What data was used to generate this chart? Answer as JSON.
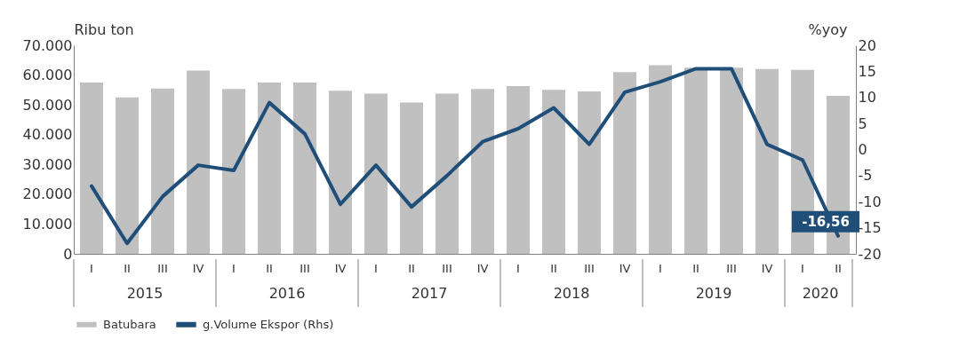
{
  "chart_data": {
    "type": "bar",
    "categories": [
      "I",
      "II",
      "III",
      "IV",
      "I",
      "II",
      "III",
      "IV",
      "I",
      "II",
      "III",
      "IV",
      "I",
      "II",
      "III",
      "IV",
      "I",
      "II",
      "III",
      "IV",
      "I",
      "II"
    ],
    "annotations": [
      "2015",
      "2016",
      "2017",
      "2018",
      "2019",
      "2020"
    ],
    "series": [
      {
        "name": "Batubara",
        "color": "#c0c0c0",
        "values": [
          57500,
          52500,
          55500,
          61500,
          55300,
          57500,
          57500,
          54700,
          53800,
          50800,
          53800,
          55300,
          56300,
          55000,
          54500,
          61000,
          63300,
          62500,
          62500,
          62000,
          61700,
          53000
        ]
      },
      {
        "name": "g.Volume Ekspor (Rhs)",
        "type": "line",
        "axis": "y2",
        "color": "#1f4e79",
        "values": [
          -7,
          -18,
          -9,
          -3,
          -4,
          9,
          3,
          -10.5,
          -3,
          -11,
          -5,
          1.5,
          4,
          8,
          1,
          11,
          13,
          15.5,
          15.5,
          1,
          -2,
          -16.56
        ],
        "value_labels": [
          null,
          null,
          null,
          null,
          null,
          null,
          null,
          null,
          null,
          null,
          null,
          null,
          null,
          null,
          null,
          null,
          null,
          null,
          null,
          null,
          null,
          "-16,56"
        ]
      }
    ],
    "ylabel": "Ribu ton",
    "y2label": "%yoy",
    "ylim": [
      0,
      70000
    ],
    "yticks": [
      {
        "value": 0,
        "label": "0"
      },
      {
        "value": 10000,
        "label": "10.000"
      },
      {
        "value": 20000,
        "label": "20.000"
      },
      {
        "value": 30000,
        "label": "30.000"
      },
      {
        "value": 40000,
        "label": "40.000"
      },
      {
        "value": 50000,
        "label": "50.000"
      },
      {
        "value": 60000,
        "label": "60.000"
      },
      {
        "value": 70000,
        "label": "70.000"
      }
    ],
    "y2lim": [
      -20,
      20
    ],
    "y2ticks": [
      -20,
      -15,
      -10,
      -5,
      0,
      5,
      10,
      15,
      20
    ],
    "grid": false,
    "legend": "bottom"
  }
}
